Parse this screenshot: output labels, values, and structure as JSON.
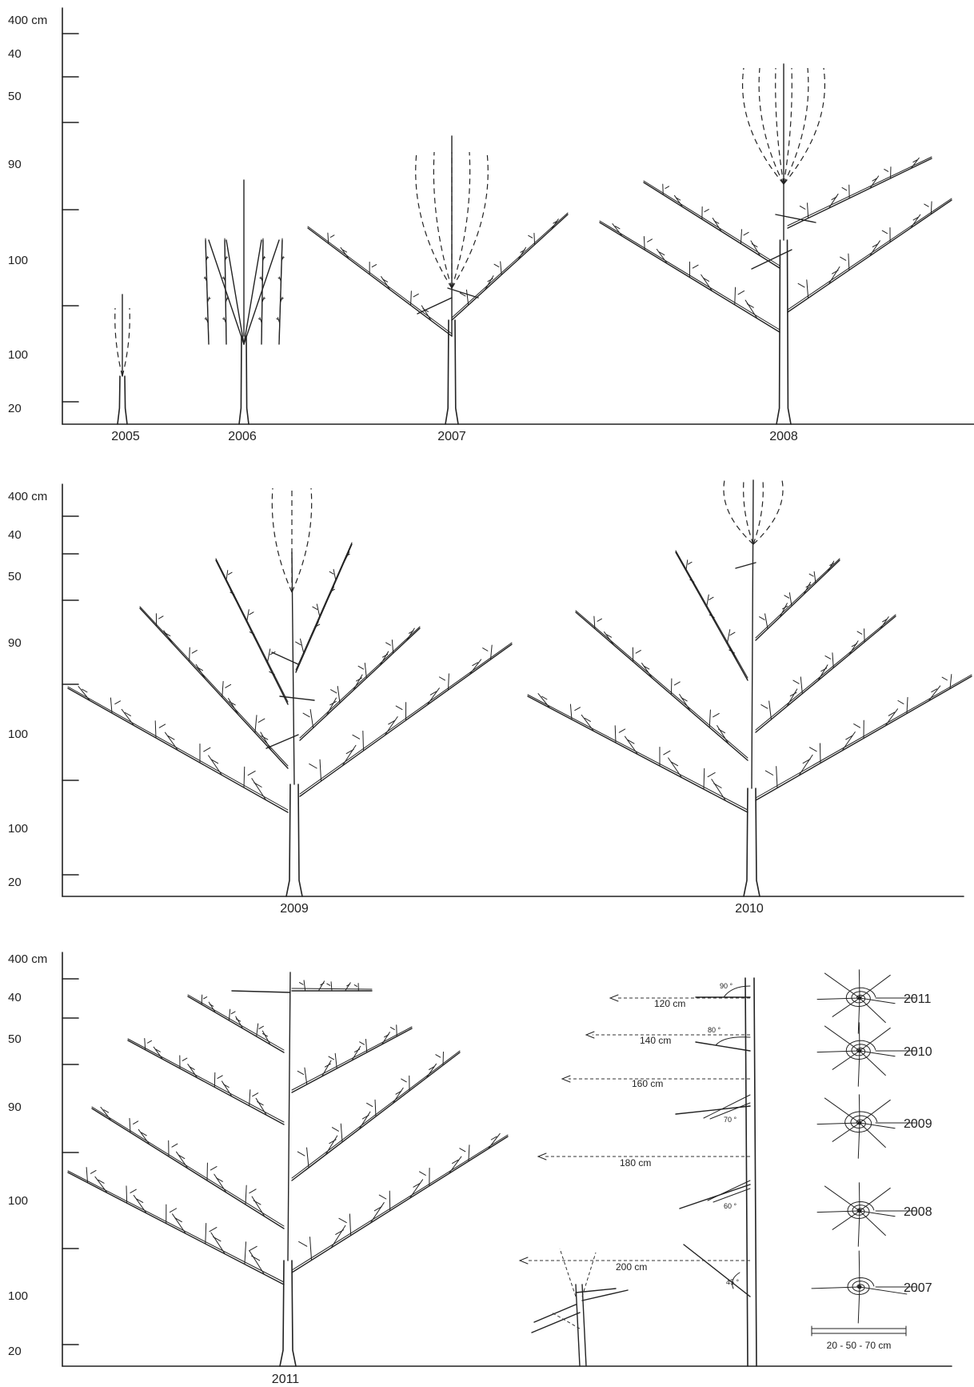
{
  "y_axis_labels": [
    "400 cm",
    "40",
    "50",
    "90",
    "100",
    "100",
    "20"
  ],
  "panels": [
    {
      "years": [
        "2005",
        "2006",
        "2007",
        "2008"
      ]
    },
    {
      "years": [
        "2009",
        "2010"
      ]
    },
    {
      "years": [
        "2011"
      ]
    }
  ],
  "distance_labels": [
    "120 cm",
    "140 cm",
    "160 cm",
    "180 cm",
    "200 cm"
  ],
  "angle_labels": [
    "90 °",
    "80 °",
    "70 °",
    "60 °",
    "45 °"
  ],
  "spiral_years": [
    "2011",
    "2010",
    "2009",
    "2008",
    "2007"
  ],
  "scale_bar_label": "20 - 50 - 70 cm"
}
